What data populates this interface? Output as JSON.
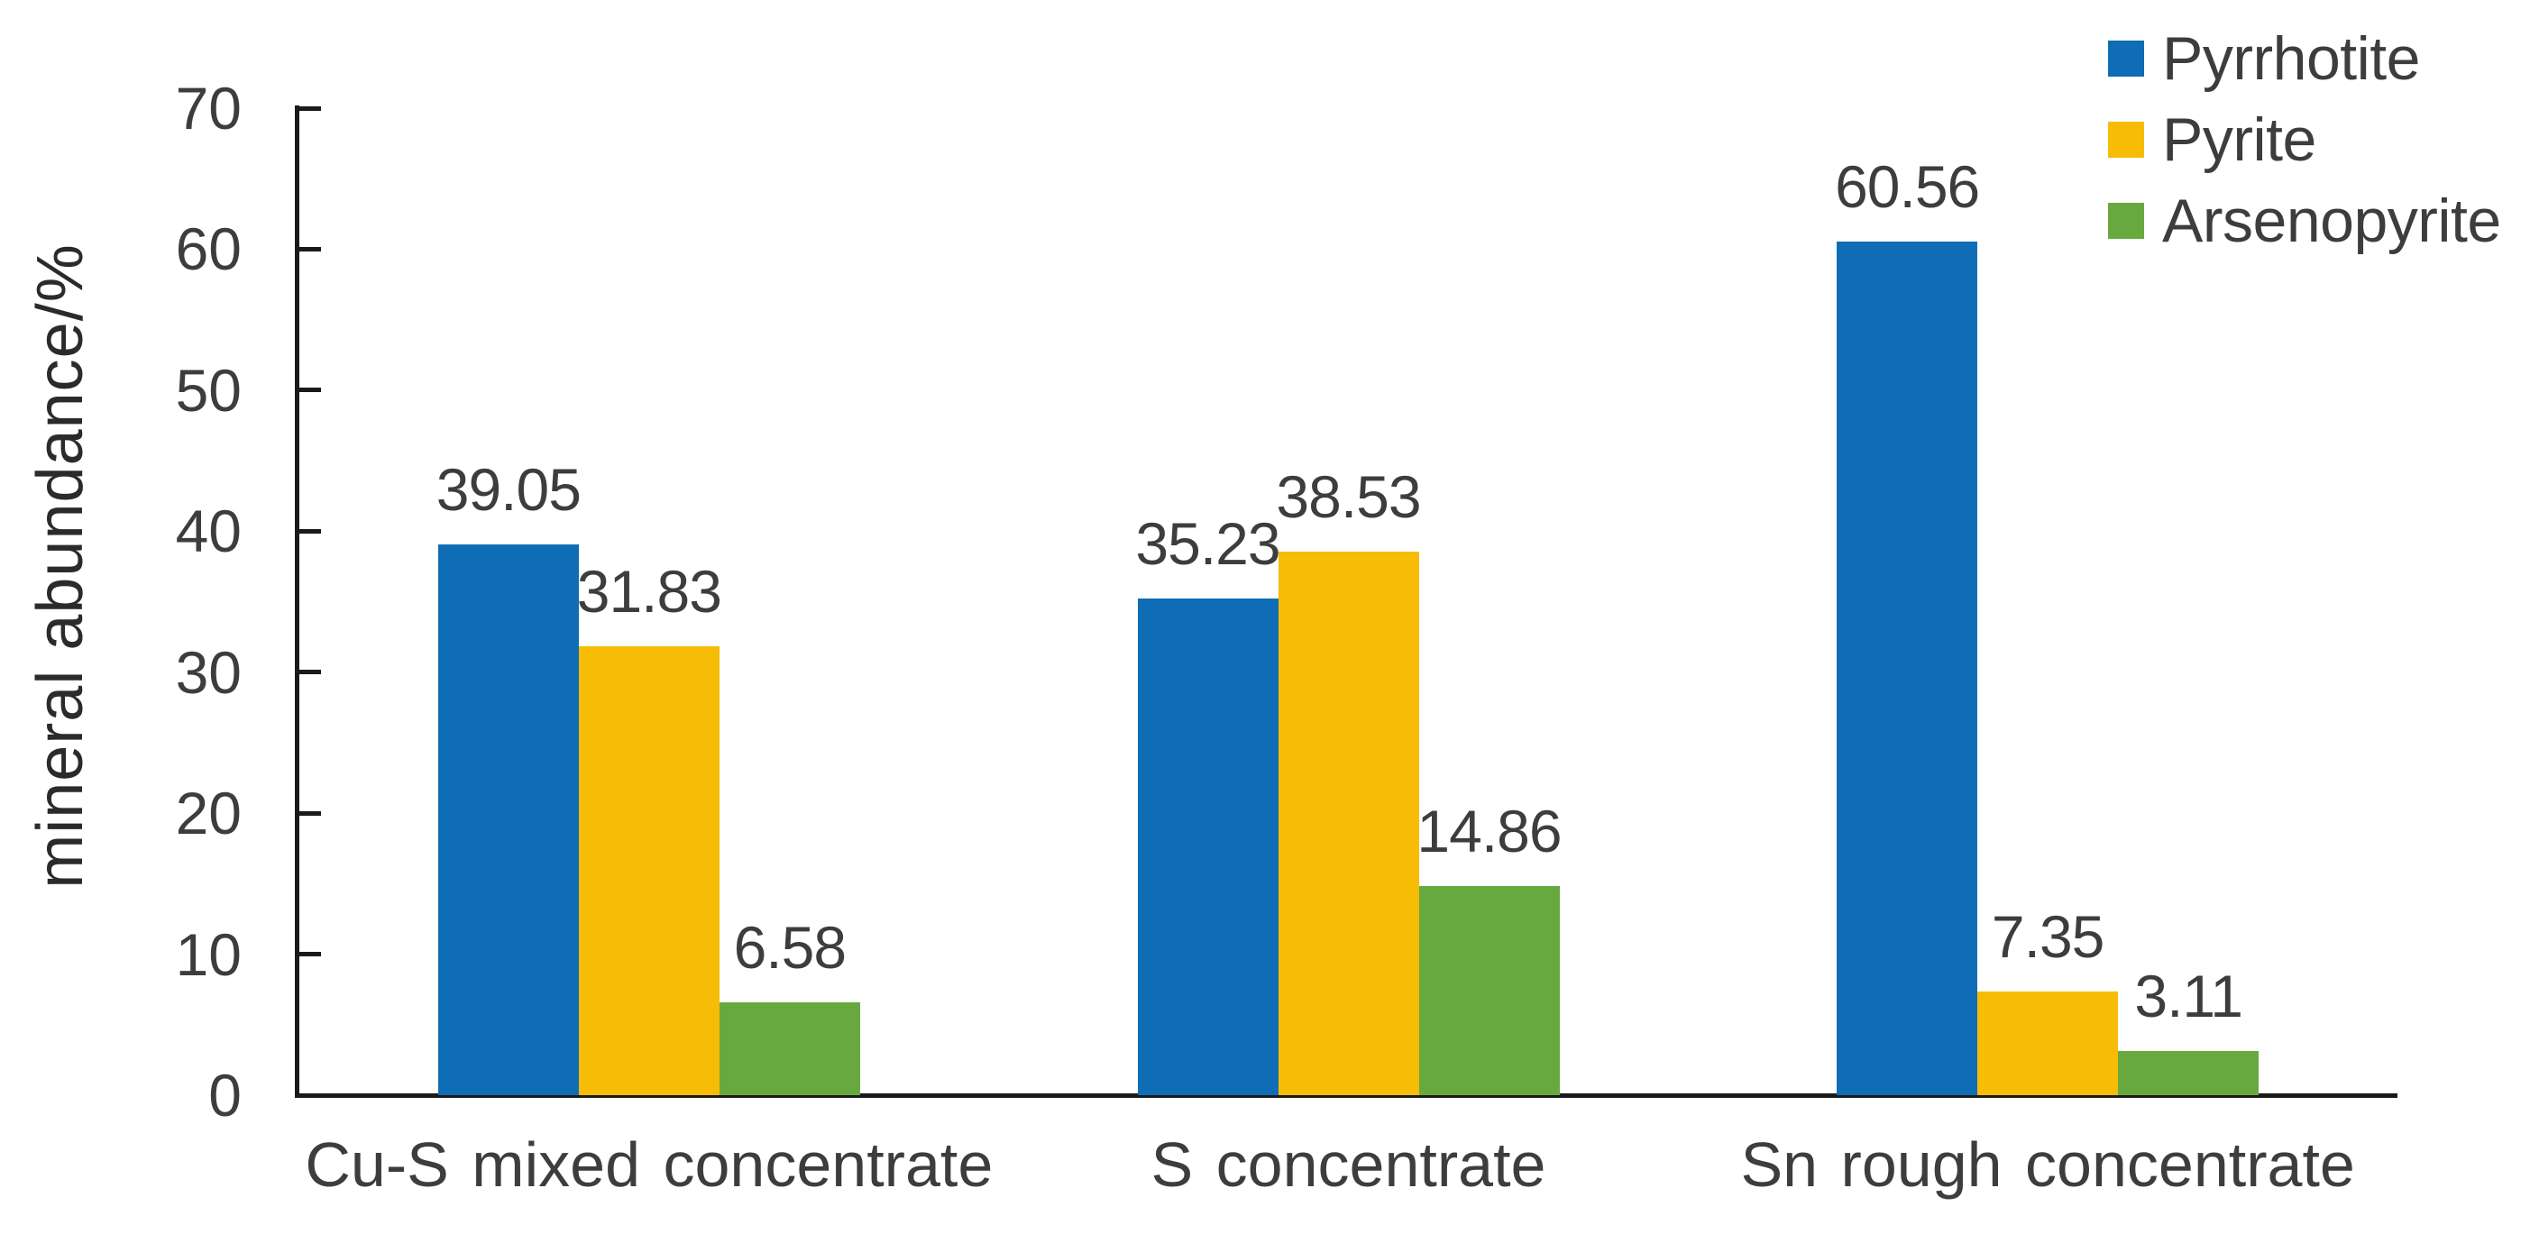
{
  "chart_data": {
    "type": "bar",
    "title": "",
    "categories": [
      "Cu-S mixed concentrate",
      "S concentrate",
      "Sn rough concentrate"
    ],
    "series": [
      {
        "name": "Pyrrhotite",
        "color": "#0E6DB5",
        "values": [
          39.05,
          35.23,
          60.56
        ]
      },
      {
        "name": "Pyrite",
        "color": "#F6BC06",
        "values": [
          31.83,
          38.53,
          7.35
        ]
      },
      {
        "name": "Arsenopyrite",
        "color": "#67A93E",
        "values": [
          6.58,
          14.86,
          3.11
        ]
      }
    ],
    "data_labels": [
      "39.05",
      "31.83",
      "6.58",
      "35.23",
      "38.53",
      "14.86",
      "60.56",
      "7.35",
      "3.11"
    ],
    "xlabel": "",
    "ylabel": "mineral abundance/%",
    "ylim": [
      0,
      70
    ],
    "yticks": [
      0,
      10,
      20,
      30,
      40,
      50,
      60,
      70
    ],
    "grid": false,
    "legend_position": "top-right"
  },
  "colors": {
    "axis": "#1a1a1a",
    "text": "#3d3d3d",
    "background": "#ffffff"
  }
}
